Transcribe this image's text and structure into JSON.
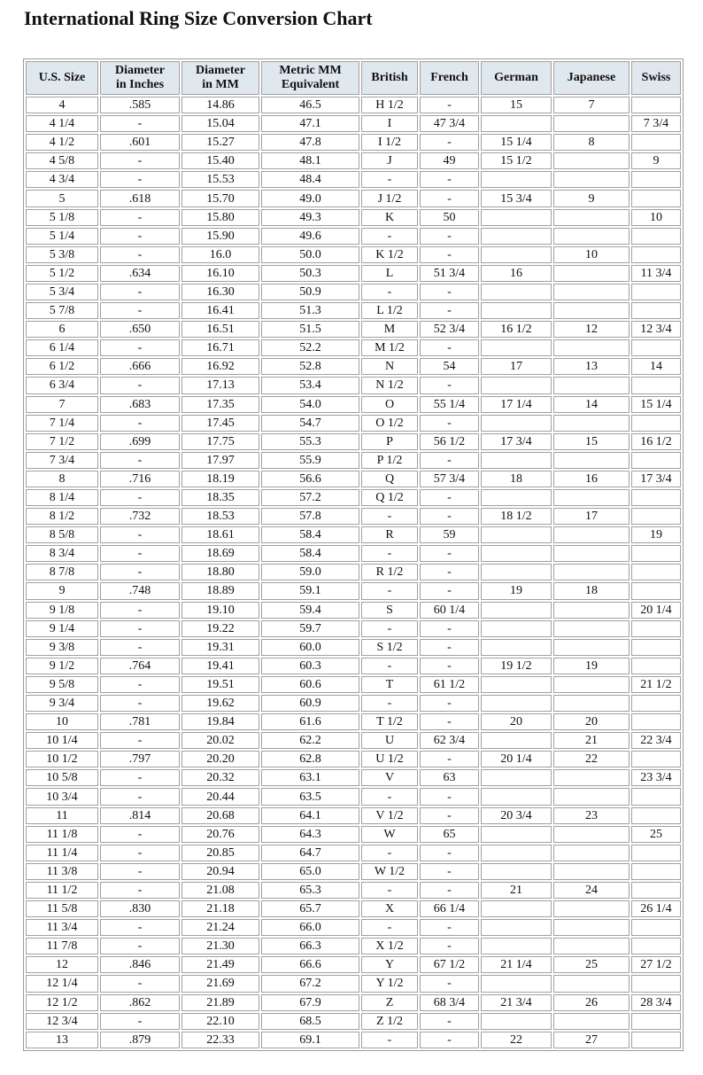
{
  "title": "International Ring Size Conversion Chart",
  "columns": [
    [
      "U.S. Size"
    ],
    [
      "Diameter",
      "in Inches"
    ],
    [
      "Diameter",
      "in MM"
    ],
    [
      "Metric MM",
      "Equivalent"
    ],
    [
      "British"
    ],
    [
      "French"
    ],
    [
      "German"
    ],
    [
      "Japanese"
    ],
    [
      "Swiss"
    ]
  ],
  "rows": [
    [
      "4",
      ".585",
      "14.86",
      "46.5",
      "H 1/2",
      "-",
      "15",
      "7",
      ""
    ],
    [
      "4 1/4",
      "-",
      "15.04",
      "47.1",
      "I",
      "47 3/4",
      "",
      "",
      "7 3/4"
    ],
    [
      "4 1/2",
      ".601",
      "15.27",
      "47.8",
      "I 1/2",
      "-",
      "15 1/4",
      "8",
      ""
    ],
    [
      "4 5/8",
      "-",
      "15.40",
      "48.1",
      "J",
      "49",
      "15 1/2",
      "",
      "9"
    ],
    [
      "4 3/4",
      "-",
      "15.53",
      "48.4",
      "-",
      "-",
      "",
      "",
      ""
    ],
    [
      "5",
      ".618",
      "15.70",
      "49.0",
      "J 1/2",
      "-",
      "15 3/4",
      "9",
      ""
    ],
    [
      "5 1/8",
      "-",
      "15.80",
      "49.3",
      "K",
      "50",
      "",
      "",
      "10"
    ],
    [
      "5 1/4",
      "-",
      "15.90",
      "49.6",
      "-",
      "-",
      "",
      "",
      ""
    ],
    [
      "5 3/8",
      "-",
      "16.0",
      "50.0",
      "K 1/2",
      "-",
      "",
      "10",
      ""
    ],
    [
      "5 1/2",
      ".634",
      "16.10",
      "50.3",
      "L",
      "51 3/4",
      "16",
      "",
      "11 3/4"
    ],
    [
      "5 3/4",
      "-",
      "16.30",
      "50.9",
      "-",
      "-",
      "",
      "",
      ""
    ],
    [
      "5 7/8",
      "-",
      "16.41",
      "51.3",
      "L 1/2",
      "-",
      "",
      "",
      ""
    ],
    [
      "6",
      ".650",
      "16.51",
      "51.5",
      "M",
      "52 3/4",
      "16 1/2",
      "12",
      "12 3/4"
    ],
    [
      "6 1/4",
      "-",
      "16.71",
      "52.2",
      "M 1/2",
      "-",
      "",
      "",
      ""
    ],
    [
      "6 1/2",
      ".666",
      "16.92",
      "52.8",
      "N",
      "54",
      "17",
      "13",
      "14"
    ],
    [
      "6 3/4",
      "-",
      "17.13",
      "53.4",
      "N 1/2",
      "-",
      "",
      "",
      ""
    ],
    [
      "7",
      ".683",
      "17.35",
      "54.0",
      "O",
      "55 1/4",
      "17 1/4",
      "14",
      "15 1/4"
    ],
    [
      "7 1/4",
      "-",
      "17.45",
      "54.7",
      "O 1/2",
      "-",
      "",
      "",
      ""
    ],
    [
      "7 1/2",
      ".699",
      "17.75",
      "55.3",
      "P",
      "56 1/2",
      "17 3/4",
      "15",
      "16 1/2"
    ],
    [
      "7 3/4",
      "-",
      "17.97",
      "55.9",
      "P 1/2",
      "-",
      "",
      "",
      ""
    ],
    [
      "8",
      ".716",
      "18.19",
      "56.6",
      "Q",
      "57 3/4",
      "18",
      "16",
      "17 3/4"
    ],
    [
      "8 1/4",
      "-",
      "18.35",
      "57.2",
      "Q 1/2",
      "-",
      "",
      "",
      ""
    ],
    [
      "8 1/2",
      ".732",
      "18.53",
      "57.8",
      "-",
      "-",
      "18 1/2",
      "17",
      ""
    ],
    [
      "8 5/8",
      "-",
      "18.61",
      "58.4",
      "R",
      "59",
      "",
      "",
      "19"
    ],
    [
      "8 3/4",
      "-",
      "18.69",
      "58.4",
      "-",
      "-",
      "",
      "",
      ""
    ],
    [
      "8 7/8",
      "-",
      "18.80",
      "59.0",
      "R 1/2",
      "-",
      "",
      "",
      ""
    ],
    [
      "9",
      ".748",
      "18.89",
      "59.1",
      "-",
      "-",
      "19",
      "18",
      ""
    ],
    [
      "9 1/8",
      "-",
      "19.10",
      "59.4",
      "S",
      "60 1/4",
      "",
      "",
      "20 1/4"
    ],
    [
      "9 1/4",
      "-",
      "19.22",
      "59.7",
      "-",
      "-",
      "",
      "",
      ""
    ],
    [
      "9 3/8",
      "-",
      "19.31",
      "60.0",
      "S 1/2",
      "-",
      "",
      "",
      ""
    ],
    [
      "9 1/2",
      ".764",
      "19.41",
      "60.3",
      "-",
      "-",
      "19 1/2",
      "19",
      ""
    ],
    [
      "9 5/8",
      "-",
      "19.51",
      "60.6",
      "T",
      "61 1/2",
      "",
      "",
      "21 1/2"
    ],
    [
      "9 3/4",
      "-",
      "19.62",
      "60.9",
      "-",
      "-",
      "",
      "",
      ""
    ],
    [
      "10",
      ".781",
      "19.84",
      "61.6",
      "T 1/2",
      "-",
      "20",
      "20",
      ""
    ],
    [
      "10 1/4",
      "-",
      "20.02",
      "62.2",
      "U",
      "62 3/4",
      "",
      "21",
      "22 3/4"
    ],
    [
      "10 1/2",
      ".797",
      "20.20",
      "62.8",
      "U 1/2",
      "-",
      "20 1/4",
      "22",
      ""
    ],
    [
      "10 5/8",
      "-",
      "20.32",
      "63.1",
      "V",
      "63",
      "",
      "",
      "23 3/4"
    ],
    [
      "10 3/4",
      "-",
      "20.44",
      "63.5",
      "-",
      "-",
      "",
      "",
      ""
    ],
    [
      "11",
      ".814",
      "20.68",
      "64.1",
      "V 1/2",
      "-",
      "20 3/4",
      "23",
      ""
    ],
    [
      "11 1/8",
      "-",
      "20.76",
      "64.3",
      "W",
      "65",
      "",
      "",
      "25"
    ],
    [
      "11 1/4",
      "-",
      "20.85",
      "64.7",
      "-",
      "-",
      "",
      "",
      ""
    ],
    [
      "11 3/8",
      "-",
      "20.94",
      "65.0",
      "W 1/2",
      "-",
      "",
      "",
      ""
    ],
    [
      "11 1/2",
      "-",
      "21.08",
      "65.3",
      "-",
      "-",
      "21",
      "24",
      ""
    ],
    [
      "11 5/8",
      ".830",
      "21.18",
      "65.7",
      "X",
      "66 1/4",
      "",
      "",
      "26 1/4"
    ],
    [
      "11 3/4",
      "-",
      "21.24",
      "66.0",
      "-",
      "-",
      "",
      "",
      ""
    ],
    [
      "11 7/8",
      "-",
      "21.30",
      "66.3",
      "X 1/2",
      "-",
      "",
      "",
      ""
    ],
    [
      "12",
      ".846",
      "21.49",
      "66.6",
      "Y",
      "67 1/2",
      "21 1/4",
      "25",
      "27 1/2"
    ],
    [
      "12 1/4",
      "-",
      "21.69",
      "67.2",
      "Y 1/2",
      "-",
      "",
      "",
      ""
    ],
    [
      "12 1/2",
      ".862",
      "21.89",
      "67.9",
      "Z",
      "68 3/4",
      "21 3/4",
      "26",
      "28 3/4"
    ],
    [
      "12 3/4",
      "-",
      "22.10",
      "68.5",
      "Z 1/2",
      "-",
      "",
      "",
      ""
    ],
    [
      "13",
      ".879",
      "22.33",
      "69.1",
      "-",
      "-",
      "22",
      "27",
      ""
    ]
  ]
}
